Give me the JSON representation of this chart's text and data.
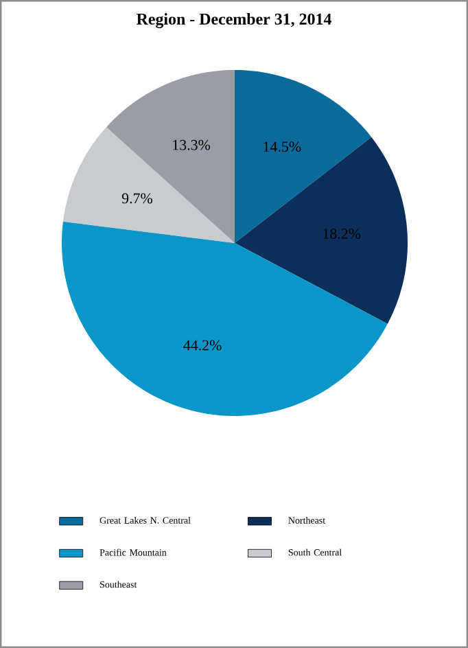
{
  "chart_data": {
    "type": "pie",
    "title": "Region - December 31, 2014",
    "categories": [
      "Great Lakes N. Central",
      "Northeast",
      "Pacific Mountain",
      "South Central",
      "Southeast"
    ],
    "values": [
      14.5,
      18.2,
      44.2,
      9.7,
      13.3
    ],
    "colors": [
      "#0b6a9c",
      "#0b2f58",
      "#0a97c8",
      "#c8ccd0",
      "#9a9ea4"
    ],
    "value_labels": [
      "14.5%",
      "18.2%",
      "44.2%",
      "9.7%",
      "13.3%"
    ],
    "legend": "bottom"
  }
}
